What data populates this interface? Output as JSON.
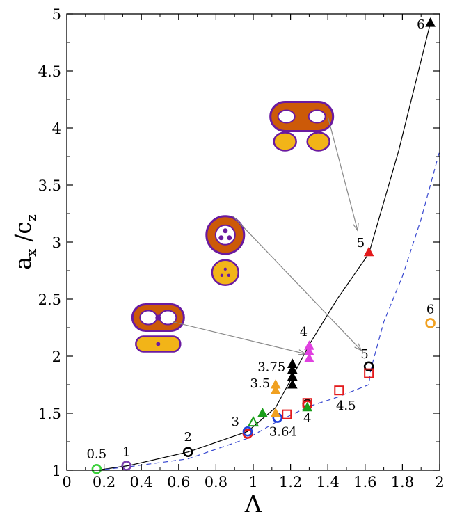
{
  "chart_data": {
    "type": "scatter",
    "title": "",
    "xlabel": "Λ",
    "ylabel": "a_x / c_z",
    "xlim": [
      0,
      2
    ],
    "ylim": [
      1,
      5
    ],
    "grid": false,
    "x_ticks": [
      "0",
      "0.2",
      "0.4",
      "0.6",
      "0.8",
      "1",
      "1.2",
      "1.4",
      "1.6",
      "1.8",
      "2"
    ],
    "y_ticks": [
      "1",
      "1.5",
      "2",
      "2.5",
      "3",
      "3.5",
      "4",
      "4.5",
      "5"
    ],
    "colors": {
      "black": "#000000",
      "red": "#e31a1c",
      "blue": "#1f3fd9",
      "green": "#1a9e1a",
      "lightgreen": "#3ad03a",
      "purple": "#7a3fb0",
      "orange": "#f0a020",
      "magenta": "#e040e0",
      "dashed_line": "#3a4ad0",
      "toroid_fill": "#cc5a08",
      "toroid_edge": "#6a1aa0",
      "core_fill": "#f2b418"
    },
    "solid_curve": [
      [
        0.16,
        1.0
      ],
      [
        0.33,
        1.04
      ],
      [
        0.65,
        1.16
      ],
      [
        0.97,
        1.34
      ],
      [
        1.12,
        1.55
      ],
      [
        1.21,
        1.82
      ],
      [
        1.3,
        2.1
      ],
      [
        1.45,
        2.5
      ],
      [
        1.62,
        2.9
      ],
      [
        1.78,
        3.8
      ],
      [
        1.95,
        4.92
      ]
    ],
    "dashed_curve": [
      [
        0.16,
        1.0
      ],
      [
        0.33,
        1.03
      ],
      [
        0.65,
        1.1
      ],
      [
        0.97,
        1.28
      ],
      [
        1.12,
        1.42
      ],
      [
        1.3,
        1.56
      ],
      [
        1.45,
        1.64
      ],
      [
        1.62,
        1.75
      ],
      [
        1.63,
        1.88
      ],
      [
        1.7,
        2.3
      ],
      [
        1.8,
        2.7
      ],
      [
        1.9,
        3.2
      ],
      [
        2.0,
        3.8
      ]
    ],
    "series": [
      {
        "marker": "circle-open",
        "color": "lightgreen",
        "points": [
          [
            0.16,
            1.01
          ]
        ]
      },
      {
        "marker": "circle-open",
        "color": "purple",
        "points": [
          [
            0.32,
            1.04
          ]
        ]
      },
      {
        "marker": "circle-open",
        "color": "black",
        "points": [
          [
            0.65,
            1.16
          ],
          [
            1.29,
            1.58
          ],
          [
            1.62,
            1.91
          ]
        ]
      },
      {
        "marker": "circle-open",
        "color": "red",
        "points": [
          [
            0.97,
            1.32
          ],
          [
            1.29,
            1.57
          ]
        ]
      },
      {
        "marker": "circle-open",
        "color": "blue",
        "points": [
          [
            0.97,
            1.34
          ],
          [
            1.13,
            1.46
          ]
        ]
      },
      {
        "marker": "circle-open",
        "color": "orange",
        "points": [
          [
            1.95,
            2.29
          ]
        ]
      },
      {
        "marker": "square-open",
        "color": "red",
        "points": [
          [
            1.18,
            1.49
          ],
          [
            1.29,
            1.59
          ],
          [
            1.46,
            1.7
          ],
          [
            1.62,
            1.85
          ]
        ]
      },
      {
        "marker": "triangle-open",
        "color": "green",
        "points": [
          [
            1.0,
            1.42
          ]
        ]
      },
      {
        "marker": "triangle-filled",
        "color": "green",
        "points": [
          [
            1.05,
            1.5
          ],
          [
            1.29,
            1.55
          ]
        ]
      },
      {
        "marker": "triangle-filled",
        "color": "orange",
        "points": [
          [
            1.12,
            1.5
          ],
          [
            1.12,
            1.7
          ],
          [
            1.12,
            1.75
          ]
        ]
      },
      {
        "marker": "triangle-filled",
        "color": "black",
        "points": [
          [
            1.21,
            1.75
          ],
          [
            1.21,
            1.82
          ],
          [
            1.21,
            1.88
          ],
          [
            1.21,
            1.93
          ],
          [
            1.95,
            4.92
          ]
        ]
      },
      {
        "marker": "triangle-filled",
        "color": "magenta",
        "points": [
          [
            1.3,
            1.98
          ],
          [
            1.3,
            2.04
          ],
          [
            1.3,
            2.09
          ]
        ]
      },
      {
        "marker": "triangle-filled",
        "color": "red",
        "points": [
          [
            1.62,
            2.91
          ]
        ]
      }
    ],
    "annotations": [
      {
        "text": "0.5",
        "x": 0.16,
        "y": 1.01
      },
      {
        "text": "1",
        "x": 0.32,
        "y": 1.04
      },
      {
        "text": "2",
        "x": 0.65,
        "y": 1.16
      },
      {
        "text": "3",
        "x": 0.97,
        "y": 1.34
      },
      {
        "text": "3.5",
        "x": 1.12,
        "y": 1.75
      },
      {
        "text": "3.64",
        "x": 1.13,
        "y": 1.46
      },
      {
        "text": "3.75",
        "x": 1.21,
        "y": 1.88
      },
      {
        "text": "4",
        "x": 1.3,
        "y": 2.09
      },
      {
        "text": "4",
        "x": 1.29,
        "y": 1.58
      },
      {
        "text": "4.5",
        "x": 1.46,
        "y": 1.7
      },
      {
        "text": "5",
        "x": 1.62,
        "y": 2.91
      },
      {
        "text": "5",
        "x": 1.62,
        "y": 1.91
      },
      {
        "text": "6",
        "x": 1.95,
        "y": 4.92
      },
      {
        "text": "6",
        "x": 1.95,
        "y": 2.29
      }
    ],
    "arrows": [
      {
        "from": [
          0.57,
          2.3
        ],
        "to": [
          1.28,
          2.02
        ]
      },
      {
        "from": [
          0.89,
          3.23
        ],
        "to": [
          1.58,
          2.05
        ]
      },
      {
        "from": [
          1.4,
          4.1
        ],
        "to": [
          1.56,
          3.1
        ]
      }
    ],
    "insets": [
      {
        "shape": "two-hole-peanut",
        "cross_sections": 1,
        "x": 0.49,
        "y": 2.32
      },
      {
        "shape": "three-hole-disk",
        "cross_sections": 3,
        "x": 0.85,
        "y": 3.05
      },
      {
        "shape": "two-hole-dumbbell",
        "cross_sections": 2,
        "x": 1.26,
        "y": 4.07
      }
    ]
  }
}
